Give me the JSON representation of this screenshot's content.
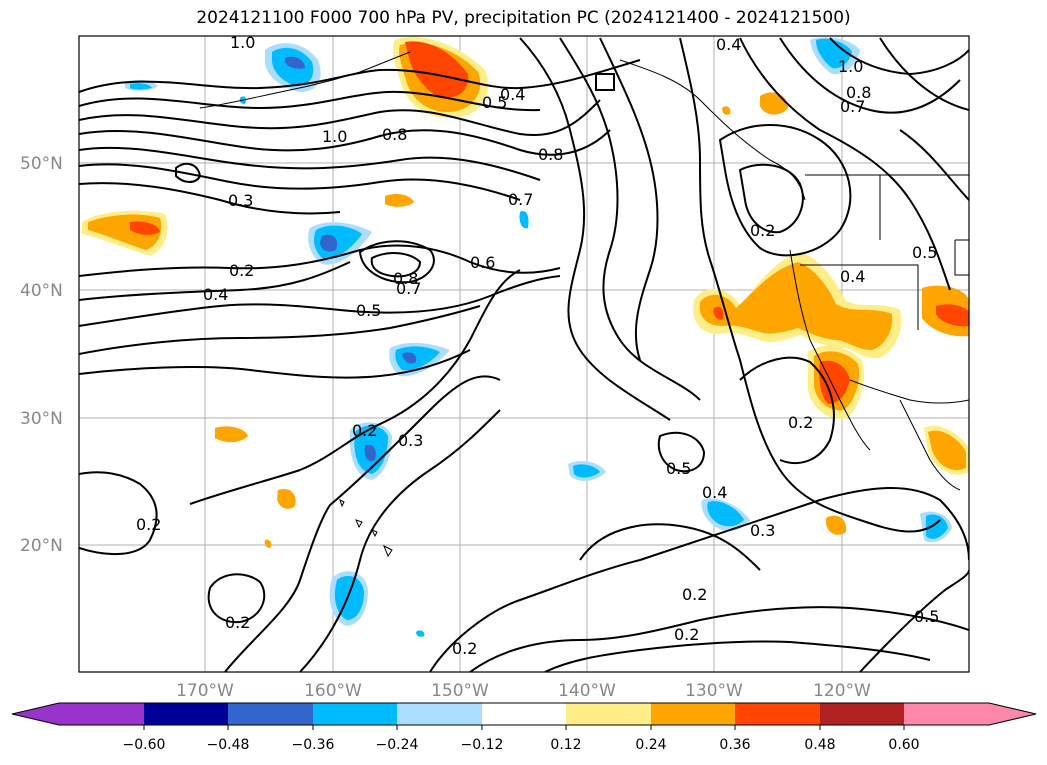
{
  "title": "2024121100 F000 700 hPa PV, precipitation PC (2024121400 - 2024121500)",
  "map": {
    "lat_labels": [
      "50°N",
      "40°N",
      "30°N",
      "20°N"
    ],
    "lon_labels": [
      "170°W",
      "160°W",
      "150°W",
      "140°W",
      "130°W",
      "120°W"
    ],
    "contour_labels": [
      "1.0",
      "1.0",
      "0.8",
      "0.5",
      "0.4",
      "0.8",
      "0.7",
      "0.6",
      "0.5",
      "0.4",
      "0.3",
      "0.2",
      "0.8",
      "0.7",
      "0.5",
      "0.4",
      "0.2",
      "0.2",
      "0.3",
      "0.5",
      "0.4",
      "0.3",
      "0.2",
      "0.2",
      "0.2",
      "0.2",
      "0.2",
      "0.2",
      "0.5",
      "0.4",
      "0.8",
      "0.7",
      "1.0"
    ],
    "colors": {
      "neg_extreme": "#9933cc",
      "neg_060": "#000099",
      "neg_048": "#3366cc",
      "neg_036": "#00bbff",
      "neg_024": "#aaddff",
      "neutral": "#ffffff",
      "pos_012": "#ffee88",
      "pos_024": "#ffa500",
      "pos_036": "#ff4500",
      "pos_048": "#b22222",
      "pos_extreme": "#ff88aa"
    }
  },
  "colorbar": {
    "ticks": [
      "−0.60",
      "−0.48",
      "−0.36",
      "−0.24",
      "−0.12",
      "0.12",
      "0.24",
      "0.36",
      "0.48",
      "0.60"
    ]
  }
}
